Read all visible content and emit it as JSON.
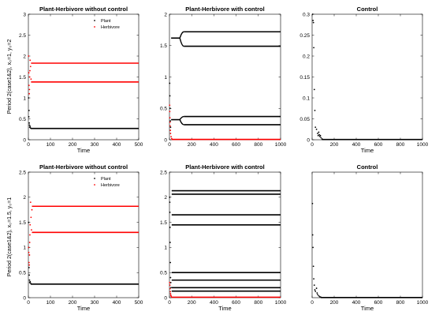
{
  "figure": {
    "row_labels": [
      "Period 2(case1&2), x₀=1, y₀=2",
      "Period 2(case1&2), x₀=1.5, y₀=1"
    ]
  },
  "chart_data": [
    {
      "type": "scatter",
      "title": "Plant-Herbivore without control",
      "xlabel": "Time",
      "xlim": [
        0,
        500
      ],
      "ylim": [
        0,
        3
      ],
      "xticks": [
        0,
        100,
        200,
        300,
        400,
        500
      ],
      "yticks": [
        0,
        0.5,
        1,
        1.5,
        2,
        2.5,
        3
      ],
      "legend": {
        "position": "top-right",
        "entries": [
          "Plant",
          "Herbivore"
        ]
      },
      "series": [
        {
          "name": "Plant",
          "color": "#000000",
          "transient": [
            [
              1,
              1.0
            ],
            [
              2,
              0.55
            ],
            [
              3,
              0.7
            ],
            [
              4,
              0.4
            ],
            [
              5,
              0.35
            ],
            [
              6,
              0.3
            ],
            [
              8,
              0.32
            ],
            [
              10,
              0.28
            ]
          ],
          "branches": [
            0.27
          ],
          "branch_from": 10,
          "branch_to": 500
        },
        {
          "name": "Herbivore",
          "color": "#ff0000",
          "transient": [
            [
              1,
              2.0
            ],
            [
              2,
              1.6
            ],
            [
              3,
              1.3
            ],
            [
              4,
              1.1
            ],
            [
              5,
              1.2
            ],
            [
              6,
              1.5
            ],
            [
              7,
              1.65
            ],
            [
              8,
              1.9
            ],
            [
              10,
              1.75
            ],
            [
              12,
              1.45
            ]
          ],
          "branches": [
            1.83,
            1.38
          ],
          "branch_from": 12,
          "branch_to": 500
        }
      ]
    },
    {
      "type": "scatter",
      "title": "Plant-Herbivore with control",
      "xlabel": "",
      "xlim": [
        0,
        1000
      ],
      "ylim": [
        0,
        2
      ],
      "xticks": [
        0,
        200,
        400,
        600,
        800,
        1000
      ],
      "yticks": [
        0,
        0.5,
        1,
        1.5,
        2
      ],
      "series": [
        {
          "name": "",
          "color": "#000000",
          "transient": [
            [
              2,
              0.9
            ],
            [
              4,
              0.7
            ],
            [
              6,
              0.5
            ],
            [
              8,
              0.3
            ],
            [
              10,
              0.2
            ]
          ],
          "branches": [
            1.72,
            1.49,
            0.37,
            0.24
          ],
          "branch_from": 130,
          "branch_to": 1000,
          "merged_levels": [
            1.62,
            0.32
          ],
          "merge_start": 15,
          "split_end": 130
        },
        {
          "name": "",
          "color": "#ff0000",
          "transient": [
            [
              2,
              0.55
            ],
            [
              3,
              0.45
            ],
            [
              4,
              0.35
            ],
            [
              5,
              0.28
            ],
            [
              6,
              0.22
            ],
            [
              8,
              0.15
            ],
            [
              10,
              0.1
            ],
            [
              15,
              0.05
            ],
            [
              20,
              0.02
            ]
          ],
          "branches": [
            0.005
          ],
          "branch_from": 20,
          "branch_to": 1000
        }
      ]
    },
    {
      "type": "scatter",
      "title": "Control",
      "xlabel": "Time",
      "xlim": [
        0,
        1000
      ],
      "ylim": [
        0,
        0.3
      ],
      "xticks": [
        0,
        200,
        400,
        600,
        800,
        1000
      ],
      "yticks": [
        0,
        0.05,
        0.1,
        0.15,
        0.2,
        0.25,
        0.3
      ],
      "series": [
        {
          "name": "",
          "color": "#000000",
          "transient": [
            [
              5,
              0.3
            ],
            [
              8,
              0.285
            ],
            [
              12,
              0.28
            ],
            [
              15,
              0.22
            ],
            [
              20,
              0.12
            ],
            [
              25,
              0.07
            ],
            [
              30,
              0.03
            ],
            [
              40,
              0.025
            ],
            [
              50,
              0.015
            ],
            [
              55,
              0.01
            ],
            [
              60,
              0.018
            ],
            [
              65,
              0.012
            ],
            [
              70,
              0.008
            ],
            [
              75,
              0.01
            ],
            [
              80,
              0.005
            ],
            [
              90,
              0.002
            ]
          ],
          "branches": [
            0.0005
          ],
          "branch_from": 90,
          "branch_to": 1000
        }
      ]
    },
    {
      "type": "scatter",
      "title": "Plant-Herbivore without control",
      "xlabel": "Time",
      "xlim": [
        0,
        500
      ],
      "ylim": [
        0,
        2.5
      ],
      "xticks": [
        0,
        100,
        200,
        300,
        400,
        500
      ],
      "yticks": [
        0,
        0.5,
        1,
        1.5,
        2,
        2.5
      ],
      "legend": {
        "position": "top-right",
        "entries": [
          "Plant",
          "Herbivore"
        ]
      },
      "series": [
        {
          "name": "Plant",
          "color": "#000000",
          "transient": [
            [
              1,
              1.5
            ],
            [
              2,
              1.0
            ],
            [
              3,
              0.6
            ],
            [
              4,
              0.45
            ],
            [
              5,
              0.35
            ],
            [
              6,
              0.3
            ],
            [
              8,
              0.32
            ],
            [
              10,
              0.29
            ]
          ],
          "branches": [
            0.27
          ],
          "branch_from": 10,
          "branch_to": 500
        },
        {
          "name": "Herbivore",
          "color": "#ff0000",
          "transient": [
            [
              1,
              1.0
            ],
            [
              2,
              0.9
            ],
            [
              3,
              0.7
            ],
            [
              4,
              0.65
            ],
            [
              5,
              0.85
            ],
            [
              6,
              1.1
            ],
            [
              7,
              1.25
            ],
            [
              8,
              1.45
            ],
            [
              10,
              1.9
            ],
            [
              12,
              1.6
            ],
            [
              14,
              1.35
            ],
            [
              16,
              1.75
            ]
          ],
          "branches": [
            1.82,
            1.3
          ],
          "branch_from": 16,
          "branch_to": 500
        }
      ]
    },
    {
      "type": "scatter",
      "title": "Plant-Herbivore with control",
      "xlabel": "Time",
      "xlim": [
        0,
        1000
      ],
      "ylim": [
        0,
        2.5
      ],
      "xticks": [
        0,
        200,
        400,
        600,
        800,
        1000
      ],
      "yticks": [
        0,
        0.5,
        1,
        1.5,
        2,
        2.5
      ],
      "series": [
        {
          "name": "",
          "color": "#000000",
          "transient": [
            [
              2,
              2.0
            ],
            [
              3,
              1.9
            ],
            [
              4,
              1.7
            ],
            [
              5,
              1.4
            ],
            [
              6,
              1.1
            ],
            [
              8,
              0.7
            ],
            [
              10,
              0.4
            ],
            [
              12,
              0.3
            ],
            [
              14,
              0.2
            ]
          ],
          "branches": [
            2.13,
            2.06,
            1.65,
            1.45,
            0.5,
            0.35,
            0.2,
            0.13
          ],
          "branch_from": 20,
          "branch_to": 1000
        },
        {
          "name": "",
          "color": "#ff0000",
          "transient": [
            [
              2,
              0.3
            ],
            [
              4,
              0.25
            ],
            [
              6,
              0.18
            ],
            [
              8,
              0.12
            ],
            [
              10,
              0.08
            ],
            [
              12,
              0.05
            ],
            [
              15,
              0.03
            ]
          ],
          "branches": [
            0.01
          ],
          "branch_from": 15,
          "branch_to": 1000
        }
      ]
    },
    {
      "type": "scatter",
      "title": "Control",
      "xlabel": "Time",
      "xlim": [
        0,
        1000
      ],
      "ylim": [
        0,
        0.8
      ],
      "xticks": [
        0,
        200,
        400,
        600,
        800,
        1000
      ],
      "yticks": [],
      "series": [
        {
          "name": "",
          "color": "#000000",
          "transient": [
            [
              3,
              0.6
            ],
            [
              5,
              0.4
            ],
            [
              8,
              0.32
            ],
            [
              12,
              0.2
            ],
            [
              15,
              0.12
            ],
            [
              20,
              0.08
            ],
            [
              25,
              0.05
            ],
            [
              30,
              0.04
            ],
            [
              40,
              0.06
            ],
            [
              45,
              0.03
            ],
            [
              50,
              0.02
            ],
            [
              60,
              0.012
            ],
            [
              70,
              0.006
            ],
            [
              80,
              0.003
            ]
          ],
          "branches": [
            0.001
          ],
          "branch_from": 80,
          "branch_to": 1000
        }
      ]
    }
  ]
}
